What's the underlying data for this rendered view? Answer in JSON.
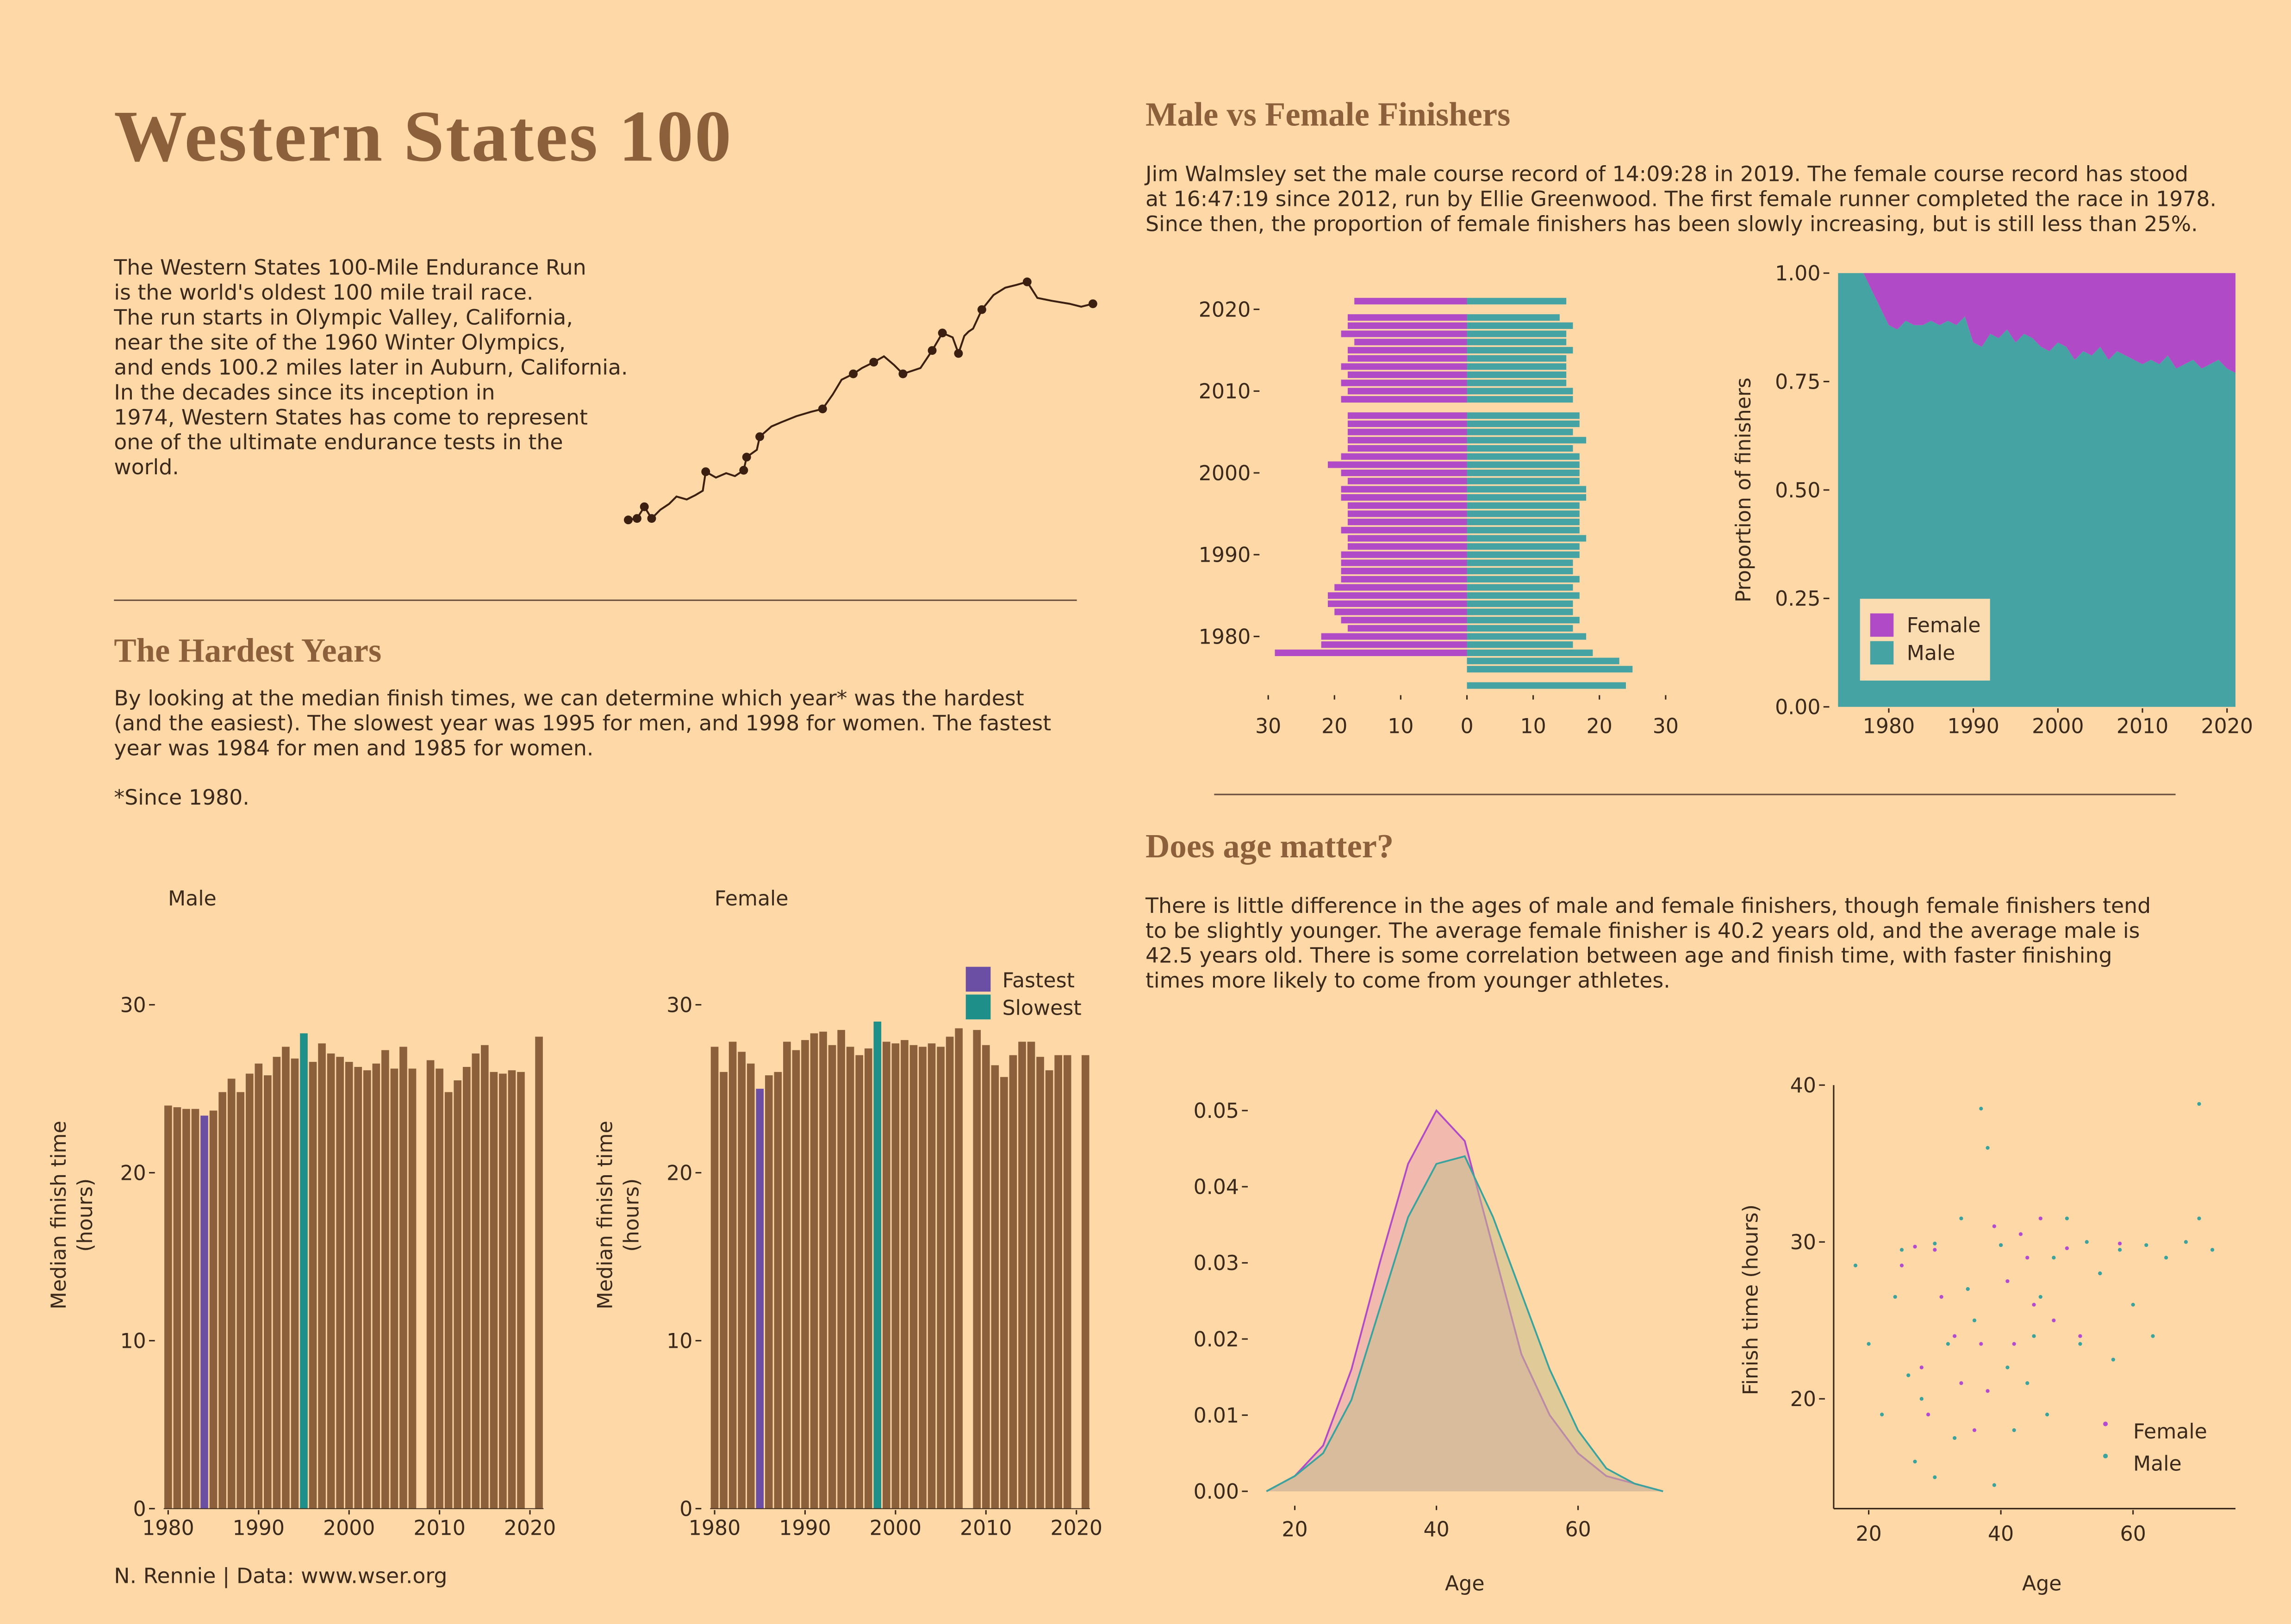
{
  "title": "Western States 100",
  "intro": [
    "The Western States 100-Mile Endurance Run",
    "is the world's oldest 100 mile trail race.",
    "The run starts in Olympic Valley, California,",
    "near the site of the 1960 Winter Olympics,",
    "and ends 100.2 miles later in Auburn, California.",
    "In the decades since its inception in",
    "1974, Western States has come to represent",
    "one of the ultimate endurance tests in the",
    "world."
  ],
  "hardest": {
    "heading": "The Hardest Years",
    "text": [
      "By looking at the median finish times, we can determine which year* was the hardest",
      "(and the easiest). The slowest year was 1995 for men, and 1998 for women. The fastest",
      "year was 1984 for men and 1985 for women."
    ],
    "note": "*Since 1980."
  },
  "gender": {
    "heading": "Male vs Female Finishers",
    "text": [
      "Jim Walmsley set the male course record of 14:09:28 in 2019. The female course record has stood",
      "at 16:47:19 since 2012, run by Ellie Greenwood. The first female runner completed the race in 1978.",
      "Since then, the proportion of female finishers has been slowly increasing, but is still less than 25%."
    ]
  },
  "age": {
    "heading": "Does age matter?",
    "text": [
      "There is little difference in the ages of male and female finishers, though female finishers tend",
      "to be slightly younger. The average female finisher is 40.2 years old, and the average male is",
      "42.5 years old. There is some correlation between age and finish time, with faster finishing",
      "times more likely to come from younger athletes."
    ]
  },
  "caption": "N. Rennie | Data: www.wser.org",
  "chart_data": [
    {
      "type": "pyramid",
      "y": [
        1974,
        1975,
        1976,
        1977,
        1978,
        1979,
        1980,
        1981,
        1982,
        1983,
        1984,
        1985,
        1986,
        1987,
        1988,
        1989,
        1990,
        1991,
        1992,
        1993,
        1994,
        1995,
        1996,
        1997,
        1998,
        1999,
        2000,
        2001,
        2002,
        2003,
        2004,
        2005,
        2006,
        2007,
        2008,
        2009,
        2010,
        2011,
        2012,
        2013,
        2014,
        2015,
        2016,
        2017,
        2018,
        2019,
        2020,
        2021
      ],
      "series": [
        {
          "color": "#b04ac7",
          "values": [
            null,
            null,
            null,
            null,
            -29,
            -22,
            -22,
            -18,
            -19,
            -20,
            -21,
            -21,
            -20,
            -19,
            -19,
            -19,
            -19,
            -18,
            -18,
            -19,
            -18,
            -18,
            -18,
            -19,
            -19,
            -18,
            -19,
            -21,
            -19,
            -18,
            -18,
            -18,
            -18,
            -18,
            null,
            -19,
            -18,
            -19,
            -18,
            -19,
            -18,
            -18,
            -17,
            -19,
            -18,
            -18,
            null,
            -17
          ]
        },
        {
          "color": "#46a3a3",
          "values": [
            24,
            null,
            25,
            23,
            19,
            16,
            18,
            16,
            17,
            16,
            16,
            17,
            16,
            17,
            16,
            16,
            17,
            17,
            18,
            17,
            17,
            17,
            17,
            18,
            18,
            17,
            17,
            17,
            17,
            16,
            18,
            16,
            17,
            17,
            null,
            16,
            16,
            15,
            15,
            15,
            15,
            16,
            15,
            15,
            16,
            14,
            null,
            15
          ]
        }
      ],
      "xlim": [
        -30,
        30
      ],
      "xticks": [
        {
          "value": -30,
          "label": "30"
        },
        {
          "value": -20,
          "label": "20"
        },
        {
          "value": -10,
          "label": "10"
        },
        0,
        10,
        20,
        30
      ],
      "ylim": [
        1973,
        2023
      ],
      "yticks": [
        1980,
        1990,
        2000,
        2010,
        2020
      ]
    },
    {
      "type": "area",
      "ylabel": "Proportion of finishers",
      "x": [
        1974,
        1975,
        1976,
        1977,
        1978,
        1979,
        1980,
        1981,
        1982,
        1983,
        1984,
        1985,
        1986,
        1987,
        1988,
        1989,
        1990,
        1991,
        1992,
        1993,
        1994,
        1995,
        1996,
        1997,
        1998,
        1999,
        2000,
        2001,
        2002,
        2003,
        2004,
        2005,
        2006,
        2007,
        2008,
        2009,
        2010,
        2011,
        2012,
        2013,
        2014,
        2015,
        2016,
        2017,
        2018,
        2019,
        2020,
        2021
      ],
      "series": [
        {
          "name": "Male",
          "color": "#46a3a3",
          "values": [
            1,
            1,
            1,
            1,
            0.96,
            0.92,
            0.88,
            0.87,
            0.89,
            0.88,
            0.88,
            0.89,
            0.88,
            0.89,
            0.88,
            0.9,
            0.84,
            0.83,
            0.86,
            0.85,
            0.87,
            0.84,
            0.86,
            0.85,
            0.83,
            0.82,
            0.84,
            0.83,
            0.8,
            0.82,
            0.81,
            0.83,
            0.8,
            0.82,
            0.81,
            0.8,
            0.79,
            0.8,
            0.79,
            0.81,
            0.78,
            0.79,
            0.8,
            0.78,
            0.79,
            0.8,
            0.78,
            0.77
          ]
        },
        {
          "name": "Female",
          "color": "#b04ac7",
          "values": [
            0,
            0,
            0,
            0,
            0.04,
            0.08,
            0.12,
            0.13,
            0.11,
            0.12,
            0.12,
            0.11,
            0.12,
            0.11,
            0.12,
            0.1,
            0.16,
            0.17,
            0.14,
            0.15,
            0.13,
            0.16,
            0.14,
            0.15,
            0.17,
            0.18,
            0.16,
            0.17,
            0.2,
            0.18,
            0.19,
            0.17,
            0.2,
            0.18,
            0.19,
            0.2,
            0.21,
            0.2,
            0.21,
            0.19,
            0.22,
            0.21,
            0.2,
            0.22,
            0.21,
            0.2,
            0.22,
            0.23
          ]
        }
      ],
      "xlim": [
        1974,
        2021
      ],
      "xticks": [
        1980,
        1990,
        2000,
        2010,
        2020
      ],
      "ylim": [
        0,
        1
      ],
      "yticks": [
        {
          "value": 0,
          "label": "0.00"
        },
        {
          "value": 0.25,
          "label": "0.25"
        },
        {
          "value": 0.5,
          "label": "0.50"
        },
        {
          "value": 0.75,
          "label": "0.75"
        },
        {
          "value": 1,
          "label": "1.00"
        }
      ],
      "legend": "lower left"
    },
    {
      "type": "bar",
      "subtitle": "Male",
      "ylabel": [
        "Median finish time",
        "(hours)"
      ],
      "color": "#8c603b",
      "x": [
        1980,
        1981,
        1982,
        1983,
        1984,
        1985,
        1986,
        1987,
        1988,
        1989,
        1990,
        1991,
        1992,
        1993,
        1994,
        1995,
        1996,
        1997,
        1998,
        1999,
        2000,
        2001,
        2002,
        2003,
        2004,
        2005,
        2006,
        2007,
        2008,
        2009,
        2010,
        2011,
        2012,
        2013,
        2014,
        2015,
        2016,
        2017,
        2018,
        2019,
        2020,
        2021
      ],
      "values": [
        24.0,
        23.9,
        23.8,
        23.8,
        23.4,
        23.7,
        24.8,
        25.6,
        24.8,
        25.9,
        26.5,
        25.8,
        26.9,
        27.5,
        26.8,
        28.3,
        26.6,
        27.7,
        27.1,
        26.9,
        26.6,
        26.3,
        26.1,
        26.5,
        27.3,
        26.2,
        27.5,
        26.2,
        null,
        26.7,
        26.2,
        24.8,
        25.5,
        26.3,
        27.1,
        27.6,
        26.0,
        25.9,
        26.1,
        26.0,
        null,
        28.1
      ],
      "highlights": [
        {
          "name": "Fastest",
          "color": "#6b4fa5",
          "x": 1984
        },
        {
          "name": "Slowest",
          "color": "#1f8f8a",
          "x": 1995
        }
      ],
      "xlim": [
        1979.5,
        2021.5
      ],
      "xticks": [
        1980,
        1990,
        2000,
        2010,
        2020
      ],
      "ylim": [
        0,
        32
      ],
      "yticks": [
        0,
        10,
        20,
        30
      ]
    },
    {
      "type": "bar",
      "subtitle": "Female",
      "ylabel": [
        "Median finish time",
        "(hours)"
      ],
      "color": "#8c603b",
      "x": [
        1980,
        1981,
        1982,
        1983,
        1984,
        1985,
        1986,
        1987,
        1988,
        1989,
        1990,
        1991,
        1992,
        1993,
        1994,
        1995,
        1996,
        1997,
        1998,
        1999,
        2000,
        2001,
        2002,
        2003,
        2004,
        2005,
        2006,
        2007,
        2008,
        2009,
        2010,
        2011,
        2012,
        2013,
        2014,
        2015,
        2016,
        2017,
        2018,
        2019,
        2020,
        2021
      ],
      "values": [
        27.5,
        26.0,
        27.8,
        27.2,
        26.5,
        25.0,
        25.8,
        26.0,
        27.8,
        27.3,
        27.9,
        28.3,
        28.4,
        27.6,
        28.5,
        27.5,
        27.0,
        27.4,
        29.0,
        27.8,
        27.7,
        27.9,
        27.6,
        27.5,
        27.7,
        27.5,
        28.1,
        28.6,
        null,
        28.5,
        27.6,
        26.4,
        25.7,
        27.0,
        27.8,
        27.8,
        26.9,
        26.1,
        27.0,
        27.0,
        null,
        27.0
      ],
      "highlights": [
        {
          "name": "Fastest",
          "color": "#6b4fa5",
          "x": 1985
        },
        {
          "name": "Slowest",
          "color": "#1f8f8a",
          "x": 1998
        }
      ],
      "xlim": [
        1979.5,
        2021.5
      ],
      "xticks": [
        1980,
        1990,
        2000,
        2010,
        2020
      ],
      "ylim": [
        0,
        32
      ],
      "yticks": [
        0,
        10,
        20,
        30
      ],
      "legend": "upper right"
    },
    {
      "type": "density",
      "xlabel": "Age",
      "x": [
        16,
        20,
        24,
        28,
        32,
        36,
        40,
        44,
        48,
        52,
        56,
        60,
        64,
        68,
        72
      ],
      "series": [
        {
          "color": "#b04ac7",
          "fill": "#e8a0b4",
          "values": [
            0.0,
            0.002,
            0.006,
            0.016,
            0.03,
            0.043,
            0.05,
            0.046,
            0.032,
            0.018,
            0.01,
            0.005,
            0.002,
            0.001,
            0.0
          ]
        },
        {
          "color": "#3aa39e",
          "fill": "#c4bf8c",
          "values": [
            0.0,
            0.002,
            0.005,
            0.012,
            0.024,
            0.036,
            0.043,
            0.044,
            0.036,
            0.026,
            0.016,
            0.008,
            0.003,
            0.001,
            0.0
          ]
        }
      ],
      "xlim": [
        14.6,
        73.4
      ],
      "xticks": [
        20,
        40,
        60
      ],
      "ylim": [
        -0.0017,
        0.052
      ],
      "yticks": [
        {
          "value": 0,
          "label": "0.00"
        },
        {
          "value": 0.01,
          "label": "0.01"
        },
        {
          "value": 0.02,
          "label": "0.02"
        },
        {
          "value": 0.03,
          "label": "0.03"
        },
        {
          "value": 0.04,
          "label": "0.04"
        },
        {
          "value": 0.05,
          "label": "0.05"
        }
      ]
    },
    {
      "type": "scatter",
      "xlabel": "Age",
      "ylabel": "Finish time (hours)",
      "series": [
        {
          "name": "Female",
          "color": "#b34ad0",
          "x": [
            25,
            30,
            35,
            40,
            45,
            33,
            28,
            38,
            42,
            50,
            55,
            48,
            36,
            31,
            44,
            52,
            27,
            39,
            46,
            58,
            34,
            41,
            29,
            37,
            43
          ],
          "y": [
            28.5,
            29.5,
            27,
            29.8,
            26,
            24,
            22,
            20.5,
            23.5,
            29.6,
            28,
            25,
            18,
            26.5,
            29,
            24,
            29.7,
            31,
            31.5,
            29.9,
            21,
            27.5,
            19,
            23.5,
            30.5
          ]
        },
        {
          "name": "Male",
          "color": "#3aa39e",
          "x": [
            18,
            20,
            22,
            25,
            27,
            30,
            32,
            35,
            37,
            38,
            40,
            42,
            45,
            48,
            50,
            52,
            55,
            58,
            60,
            62,
            65,
            68,
            70,
            70,
            72,
            28,
            33,
            44,
            47,
            53,
            36,
            41,
            24,
            63,
            57,
            30,
            34,
            46,
            39,
            26
          ],
          "y": [
            28.5,
            23.5,
            19,
            29.5,
            16,
            15,
            23.5,
            27,
            38.5,
            36,
            29.8,
            18,
            24,
            29,
            31.5,
            23.5,
            28,
            29.5,
            26,
            29.8,
            29,
            30,
            38.8,
            31.5,
            29.5,
            20,
            17.5,
            21,
            19,
            30,
            25,
            22,
            26.5,
            24,
            22.5,
            29.9,
            31.5,
            26.5,
            14.5,
            21.5
          ]
        }
      ],
      "xlim": [
        14.7,
        75.5
      ],
      "xticks": [
        20,
        40,
        60
      ],
      "ylim": [
        13,
        40
      ],
      "yticks": [
        20,
        30,
        40
      ],
      "legend": "lower right"
    }
  ]
}
